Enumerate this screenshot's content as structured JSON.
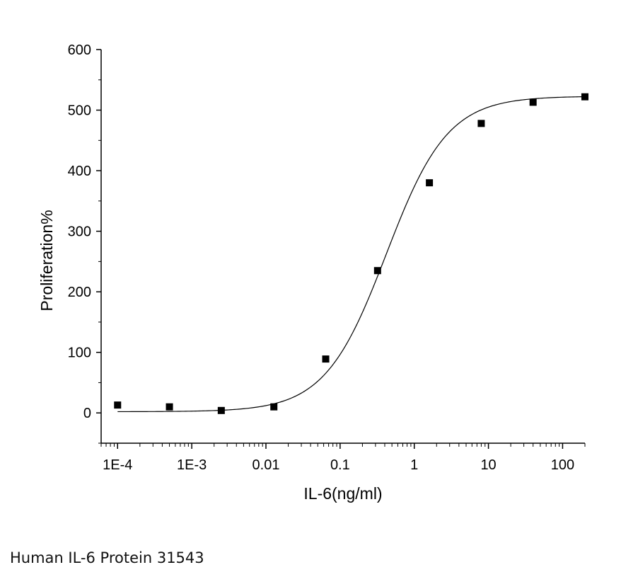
{
  "caption": "Human IL-6 Protein 31543",
  "chart_data": {
    "type": "scatter",
    "title": "",
    "xlabel": "IL-6(ng/ml)",
    "ylabel": "Proliferation%",
    "xscale": "log",
    "xlim": [
      6e-05,
      200
    ],
    "ylim": [
      -50,
      600
    ],
    "xticks": [
      0.0001,
      0.001,
      0.01,
      0.1,
      1,
      10,
      100
    ],
    "xtick_labels": [
      "1E-4",
      "1E-3",
      "0.01",
      "0.1",
      "1",
      "10",
      "100"
    ],
    "yticks": [
      0,
      100,
      200,
      300,
      400,
      500,
      600
    ],
    "ytick_labels": [
      "0",
      "100",
      "200",
      "300",
      "400",
      "500",
      "600"
    ],
    "grid": false,
    "legend": "none",
    "series": [
      {
        "marker": "square",
        "color": "#000000",
        "x": [
          0.0001,
          0.0005,
          0.0025,
          0.0128,
          0.064,
          0.32,
          1.6,
          8,
          40,
          200
        ],
        "y": [
          13,
          10,
          4,
          10,
          89,
          235,
          380,
          478,
          513,
          522
        ]
      }
    ],
    "fit_curve": {
      "model": "4PL",
      "color": "#000000",
      "bottom": 2,
      "top": 523,
      "ec50": 0.42,
      "hill": 1.05
    }
  }
}
